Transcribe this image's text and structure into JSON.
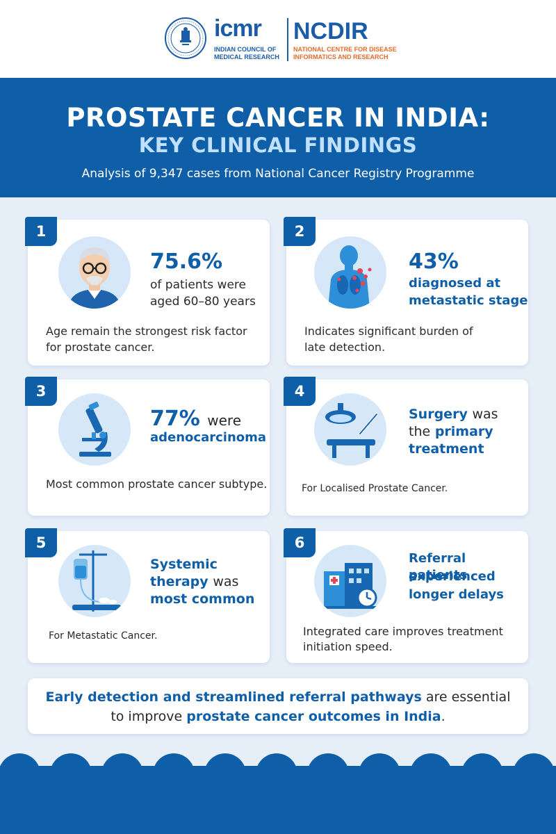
{
  "header": {
    "icmr_logo": "icmr",
    "icmr_subtitle_1": "INDIAN COUNCIL OF",
    "icmr_subtitle_2": "MEDICAL RESEARCH",
    "ncdir_logo": "NCDIR",
    "ncdir_subtitle_1": "NATIONAL CENTRE FOR DISEASE",
    "ncdir_subtitle_2": "INFORMATICS AND RESEARCH"
  },
  "title": {
    "line1": "PROSTATE CANCER IN INDIA:",
    "line2": "KEY CLINICAL FINDINGS",
    "subtitle": "Analysis of 9,347 cases from National Cancer Registry Programme"
  },
  "cards": [
    {
      "number": "1",
      "icon": "elderly-man-icon",
      "stat": "75.6%",
      "text_1": "of patients were",
      "text_2": "aged 60–80 years",
      "caption_1": "Age remain the strongest risk factor",
      "caption_2": "for prostate cancer."
    },
    {
      "number": "2",
      "icon": "metastasis-body-icon",
      "stat": "43%",
      "text_1": "diagnosed at",
      "text_2": "metastatic stage",
      "caption_1": "Indicates significant burden of",
      "caption_2": "late detection."
    },
    {
      "number": "3",
      "icon": "microscope-icon",
      "stat": "77%",
      "stat_suffix": "were",
      "text_1": "adenocarcinoma",
      "caption_1": "Most common prostate cancer subtype."
    },
    {
      "number": "4",
      "icon": "surgery-lamp-icon",
      "text_1a": "Surgery",
      "text_1b": "was",
      "text_2a": "the",
      "text_2b": "primary",
      "text_3": "treatment",
      "caption_1": "For Localised Prostate Cancer."
    },
    {
      "number": "5",
      "icon": "iv-drip-icon",
      "text_1": "Systemic",
      "text_2a": "therapy",
      "text_2b": "was",
      "text_3": "most common",
      "caption_1": "For Metastatic Cancer."
    },
    {
      "number": "6",
      "icon": "hospital-clock-icon",
      "text_1": "Referral patients",
      "text_2": "experienced",
      "text_3": "longer delays",
      "caption_1": "Integrated care improves treatment",
      "caption_2": "initiation speed."
    }
  ],
  "conclusion": {
    "part1_bold": "Early detection and streamlined referral pathways",
    "part2": "are essential",
    "part3": "to improve",
    "part4_bold": "prostate cancer outcomes in India",
    "part5": "."
  },
  "colors": {
    "primary_blue": "#0f5fa8",
    "light_blue": "#d6e7f7",
    "accent_orange": "#e36a2a",
    "background": "#e6eef8"
  }
}
